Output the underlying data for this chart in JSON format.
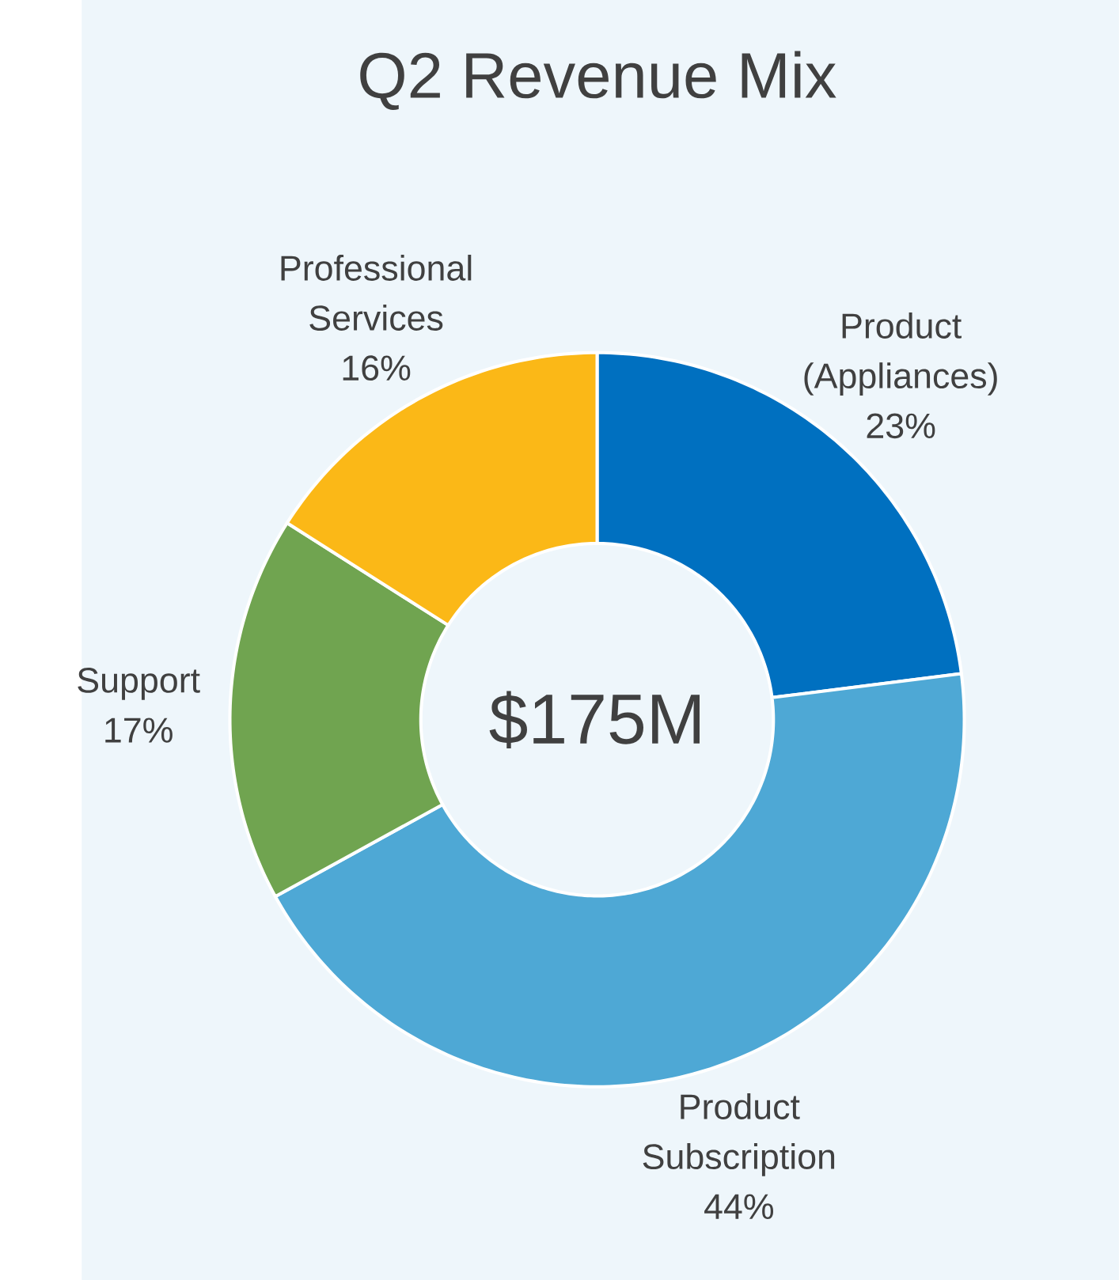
{
  "chart_data": {
    "type": "donut",
    "title": "Q2 Revenue Mix",
    "categories": [
      "Product (Appliances)",
      "Product Subscription",
      "Support",
      "Professional Services"
    ],
    "values": [
      23,
      44,
      17,
      16
    ],
    "value_labels": [
      "23%",
      "44%",
      "17%",
      "16%"
    ],
    "colors": [
      "#0070c0",
      "#4ea8d5",
      "#70a450",
      "#fbb817"
    ],
    "annotations": [
      "$175M"
    ]
  }
}
